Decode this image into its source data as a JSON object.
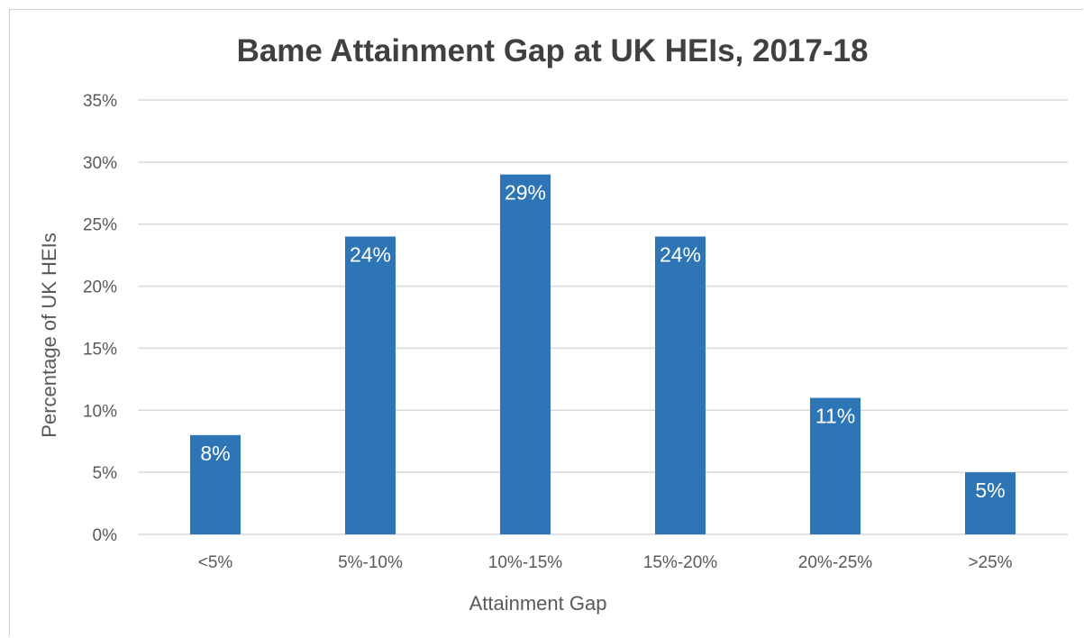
{
  "chart_data": {
    "type": "bar",
    "title": "Bame Attainment Gap at UK HEIs, 2017-18",
    "xlabel": "Attainment Gap",
    "ylabel": "Percentage of UK HEIs",
    "categories": [
      "<5%",
      "5%-10%",
      "10%-15%",
      "15%-20%",
      "20%-25%",
      ">25%"
    ],
    "values": [
      8,
      24,
      29,
      24,
      11,
      5
    ],
    "data_labels": [
      "8%",
      "24%",
      "29%",
      "24%",
      "11%",
      "5%"
    ],
    "ylim": [
      0,
      35
    ],
    "yticks": [
      "0%",
      "5%",
      "10%",
      "15%",
      "20%",
      "25%",
      "30%",
      "35%"
    ],
    "ytick_values": [
      0,
      5,
      10,
      15,
      20,
      25,
      30,
      35
    ],
    "bar_color": "#2e75b6",
    "grid": true,
    "legend": "none"
  }
}
